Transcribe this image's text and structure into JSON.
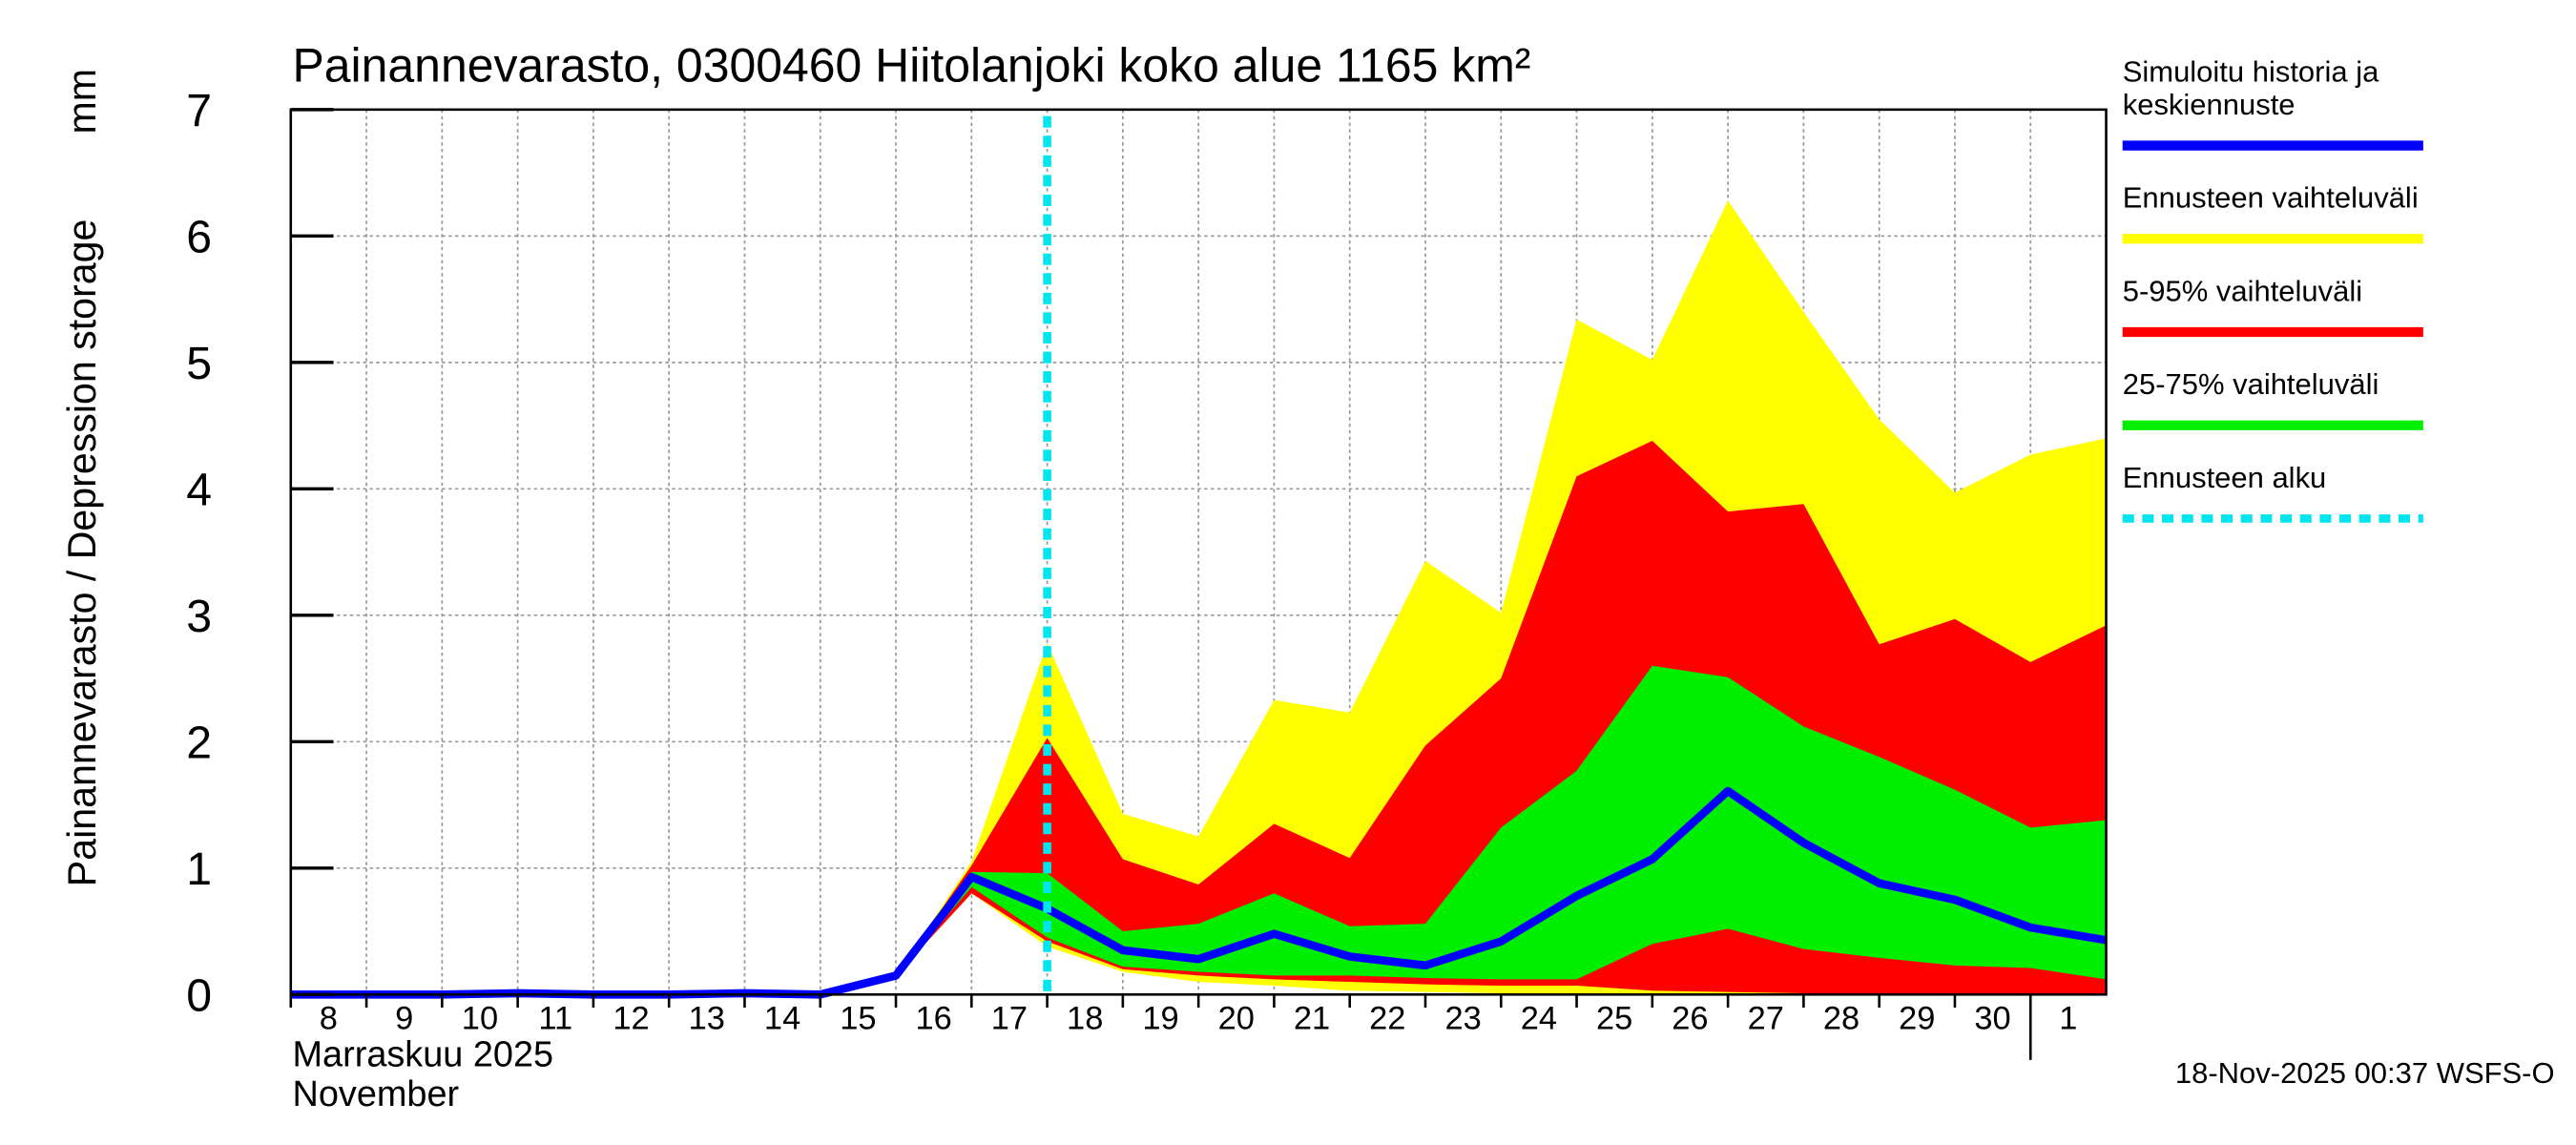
{
  "chart_data": {
    "type": "band",
    "title": "Painannevarasto, 0300460 Hiitolanjoki koko alue 1165 km²",
    "y_label": "Painannevarasto / Depression storage",
    "y_unit": "mm",
    "x_label_fi": "Marraskuu 2025",
    "x_label_en": "November",
    "footer": "18-Nov-2025 00:37 WSFS-O",
    "x": [
      "2025-11-08",
      "2025-11-09",
      "2025-11-10",
      "2025-11-11",
      "2025-11-12",
      "2025-11-13",
      "2025-11-14",
      "2025-11-15",
      "2025-11-16",
      "2025-11-17",
      "2025-11-18",
      "2025-11-19",
      "2025-11-20",
      "2025-11-21",
      "2025-11-22",
      "2025-11-23",
      "2025-11-24",
      "2025-11-25",
      "2025-11-26",
      "2025-11-27",
      "2025-11-28",
      "2025-11-29",
      "2025-11-30",
      "2025-12-01",
      "2025-12-02"
    ],
    "xticks": [
      {
        "value": "2025-11-08",
        "label": "8"
      },
      {
        "value": "2025-11-09",
        "label": "9"
      },
      {
        "value": "2025-11-10",
        "label": "10"
      },
      {
        "value": "2025-11-11",
        "label": "11"
      },
      {
        "value": "2025-11-12",
        "label": "12"
      },
      {
        "value": "2025-11-13",
        "label": "13"
      },
      {
        "value": "2025-11-14",
        "label": "14"
      },
      {
        "value": "2025-11-15",
        "label": "15"
      },
      {
        "value": "2025-11-16",
        "label": "16"
      },
      {
        "value": "2025-11-17",
        "label": "17"
      },
      {
        "value": "2025-11-18",
        "label": "18"
      },
      {
        "value": "2025-11-19",
        "label": "19"
      },
      {
        "value": "2025-11-20",
        "label": "20"
      },
      {
        "value": "2025-11-21",
        "label": "21"
      },
      {
        "value": "2025-11-22",
        "label": "22"
      },
      {
        "value": "2025-11-23",
        "label": "23"
      },
      {
        "value": "2025-11-24",
        "label": "24"
      },
      {
        "value": "2025-11-25",
        "label": "25"
      },
      {
        "value": "2025-11-26",
        "label": "26"
      },
      {
        "value": "2025-11-27",
        "label": "27"
      },
      {
        "value": "2025-11-28",
        "label": "28"
      },
      {
        "value": "2025-11-29",
        "label": "29"
      },
      {
        "value": "2025-11-30",
        "label": "30"
      },
      {
        "value": "2025-12-01",
        "label": "1"
      }
    ],
    "xlim": [
      "2025-11-08",
      "2025-12-02"
    ],
    "ylim": [
      0,
      7
    ],
    "yticks": [
      0,
      1,
      2,
      3,
      4,
      5,
      6,
      7
    ],
    "grid": true,
    "forecast_start": "2025-11-18",
    "series": [
      {
        "name": "Ennusteen vaihteluväli",
        "color": "#ffff00",
        "kind": "band",
        "upper": [
          null,
          null,
          null,
          null,
          null,
          null,
          null,
          null,
          0.15,
          1.05,
          2.78,
          1.43,
          1.25,
          2.33,
          2.23,
          3.43,
          3.02,
          5.34,
          5.02,
          6.28,
          5.4,
          4.55,
          3.97,
          4.27,
          4.4
        ],
        "lower": [
          null,
          null,
          null,
          null,
          null,
          null,
          null,
          null,
          0.15,
          0.8,
          0.38,
          0.18,
          0.1,
          0.07,
          0.03,
          0.02,
          0.01,
          0,
          0,
          0,
          0,
          0,
          0,
          0,
          0
        ]
      },
      {
        "name": "5-95% vaihteluväli",
        "color": "#ff0000",
        "kind": "band",
        "upper": [
          null,
          null,
          null,
          null,
          null,
          null,
          null,
          null,
          0.15,
          1.02,
          2.03,
          1.07,
          0.87,
          1.35,
          1.08,
          1.97,
          2.5,
          4.1,
          4.38,
          3.82,
          3.88,
          2.77,
          2.97,
          2.63,
          2.92
        ],
        "lower": [
          null,
          null,
          null,
          null,
          null,
          null,
          null,
          null,
          0.15,
          0.8,
          0.42,
          0.2,
          0.15,
          0.12,
          0.1,
          0.08,
          0.07,
          0.07,
          0.03,
          0.02,
          0.01,
          0.01,
          0,
          0,
          0
        ]
      },
      {
        "name": "25-75% vaihteluväli",
        "color": "#00ee00",
        "kind": "band",
        "upper": [
          null,
          null,
          null,
          null,
          null,
          null,
          null,
          null,
          0.15,
          0.97,
          0.96,
          0.5,
          0.56,
          0.8,
          0.54,
          0.56,
          1.32,
          1.77,
          2.6,
          2.51,
          2.12,
          1.88,
          1.62,
          1.32,
          1.38
        ],
        "lower": [
          null,
          null,
          null,
          null,
          null,
          null,
          null,
          null,
          0.15,
          0.85,
          0.45,
          0.22,
          0.18,
          0.15,
          0.15,
          0.13,
          0.12,
          0.12,
          0.4,
          0.52,
          0.36,
          0.29,
          0.23,
          0.21,
          0.12
        ]
      },
      {
        "name": "Simuloitu historia ja\nkeskiennuste",
        "color": "#0000ff",
        "kind": "line",
        "values": [
          0,
          0,
          0,
          0.01,
          0,
          0,
          0.01,
          0,
          0.15,
          0.93,
          0.68,
          0.35,
          0.28,
          0.48,
          0.3,
          0.23,
          0.42,
          0.78,
          1.07,
          1.61,
          1.2,
          0.88,
          0.75,
          0.53,
          0.43
        ]
      }
    ],
    "legend_order": [
      3,
      0,
      1,
      2
    ],
    "forecast_legend": {
      "name": "Ennusteen alku",
      "color": "#00e5ee"
    }
  }
}
